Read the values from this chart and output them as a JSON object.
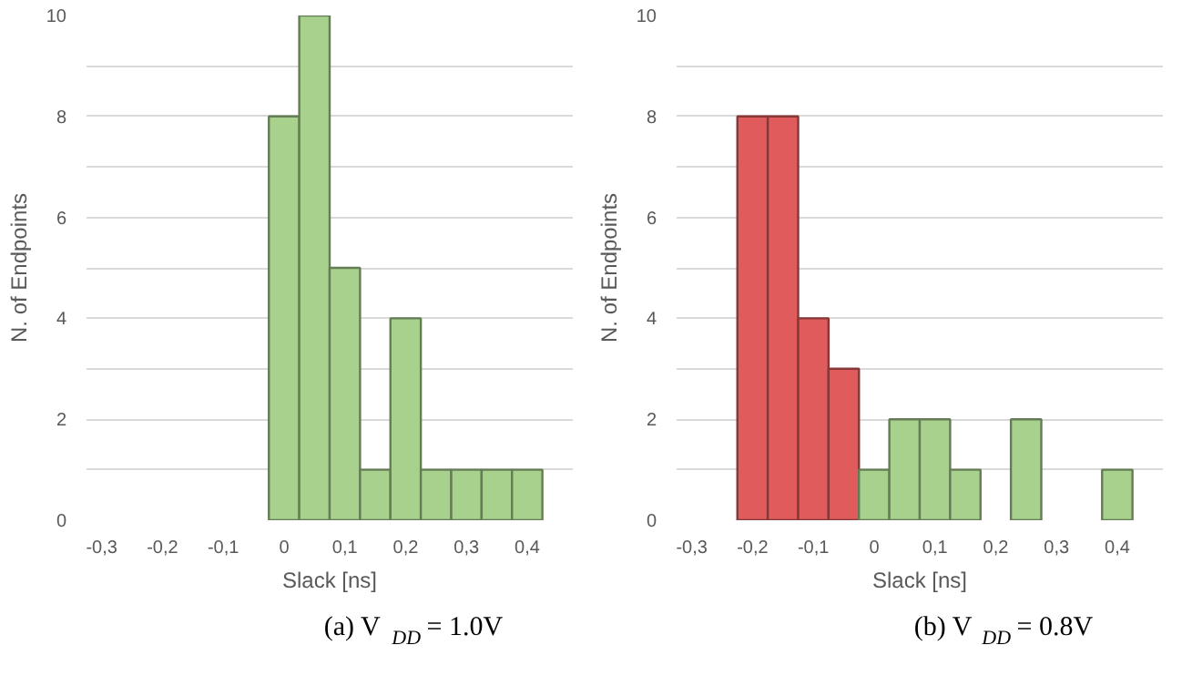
{
  "chart_data": [
    {
      "type": "histogram",
      "xlabel": "Slack [ns]",
      "ylabel": "N. of Endpoints",
      "annotations": [
        "(a) V$_{DD}$ = 1.0V"
      ],
      "bins": [
        -0.025,
        0.025,
        0.075,
        0.125,
        0.175,
        0.225,
        0.275,
        0.325,
        0.375,
        0.425
      ],
      "values": [
        8,
        10,
        5,
        1,
        4,
        1,
        1,
        1,
        1
      ],
      "colors": [
        "#a9d18e",
        "#a9d18e",
        "#a9d18e",
        "#a9d18e",
        "#a9d18e",
        "#a9d18e",
        "#a9d18e",
        "#a9d18e",
        "#a9d18e"
      ],
      "xlim": [
        -0.325,
        0.475
      ],
      "xticks": [
        {
          "value": -0.3,
          "label": "-0,3"
        },
        {
          "value": -0.2,
          "label": "-0,2"
        },
        {
          "value": -0.1,
          "label": "-0,1"
        },
        {
          "value": 0,
          "label": "0"
        },
        {
          "value": 0.1,
          "label": "0,1"
        },
        {
          "value": 0.2,
          "label": "0,2"
        },
        {
          "value": 0.3,
          "label": "0,3"
        },
        {
          "value": 0.4,
          "label": "0,4"
        }
      ],
      "ylim": [
        0,
        10
      ],
      "yticks": [
        0,
        {
          "value": 1,
          "label": null
        },
        2,
        {
          "value": 3,
          "label": null
        },
        4,
        {
          "value": 5,
          "label": null
        },
        6,
        {
          "value": 7,
          "label": null
        },
        8,
        {
          "value": 9,
          "label": null
        },
        10
      ],
      "grid": "y"
    },
    {
      "type": "histogram",
      "xlabel": "Slack [ns]",
      "ylabel": "N. of Endpoints",
      "annotations": [
        "(b) V$_{DD}$ = 0.8V"
      ],
      "bins": [
        -0.225,
        -0.175,
        -0.125,
        -0.075,
        -0.025,
        0.025,
        0.075,
        0.125,
        0.175,
        0.225,
        0.275,
        0.325,
        0.375,
        0.425
      ],
      "values": [
        8,
        8,
        4,
        3,
        1,
        2,
        2,
        1,
        0,
        2,
        0,
        0,
        1
      ],
      "colors": [
        "#e05c5c",
        "#e05c5c",
        "#e05c5c",
        "#e05c5c",
        "#a9d18e",
        "#a9d18e",
        "#a9d18e",
        "#a9d18e",
        "#a9d18e",
        "#a9d18e",
        "#a9d18e",
        "#a9d18e",
        "#a9d18e"
      ],
      "xlim": [
        -0.325,
        0.475
      ],
      "xticks": [
        {
          "value": -0.3,
          "label": "-0,3"
        },
        {
          "value": -0.2,
          "label": "-0,2"
        },
        {
          "value": -0.1,
          "label": "-0,1"
        },
        {
          "value": 0,
          "label": "0"
        },
        {
          "value": 0.1,
          "label": "0,1"
        },
        {
          "value": 0.2,
          "label": "0,2"
        },
        {
          "value": 0.3,
          "label": "0,3"
        },
        {
          "value": 0.4,
          "label": "0,4"
        }
      ],
      "ylim": [
        0,
        10
      ],
      "yticks": [
        0,
        {
          "value": 1,
          "label": null
        },
        2,
        {
          "value": 3,
          "label": null
        },
        4,
        {
          "value": 5,
          "label": null
        },
        6,
        {
          "value": 7,
          "label": null
        },
        8,
        {
          "value": 9,
          "label": null
        },
        10
      ],
      "grid": "y"
    }
  ]
}
